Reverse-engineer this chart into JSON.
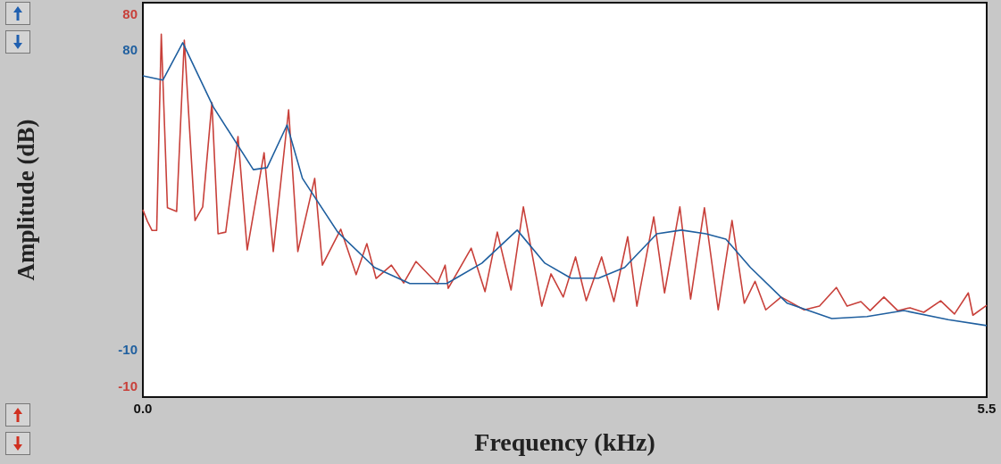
{
  "chart_data": {
    "type": "line",
    "xlabel": "Frequency (kHz)",
    "y2label": "Amplitude (dB)",
    "marker": "none",
    "line_style": "solid",
    "xlim": [
      0,
      5.5
    ],
    "xticks": [
      {
        "value": 0,
        "label": "0.0"
      },
      {
        "value": 5.5,
        "label": "5.5"
      }
    ],
    "ylim": [
      -24.2,
      93.9
    ],
    "yticks": [
      -10,
      80
    ],
    "y2lim": [
      -12.8,
      82.6
    ],
    "y2ticks": [
      -10,
      80
    ],
    "series": [
      {
        "color": "#c8403a",
        "axis": "y2",
        "x": [
          0,
          0.03,
          0.06,
          0.09,
          0.12,
          0.16,
          0.22,
          0.27,
          0.34,
          0.39,
          0.45,
          0.49,
          0.54,
          0.62,
          0.68,
          0.79,
          0.85,
          0.95,
          1.01,
          1.12,
          1.17,
          1.29,
          1.39,
          1.46,
          1.52,
          1.62,
          1.7,
          1.78,
          1.92,
          1.97,
          1.99,
          2.14,
          2.23,
          2.31,
          2.4,
          2.48,
          2.6,
          2.66,
          2.74,
          2.82,
          2.89,
          2.99,
          3.07,
          3.16,
          3.22,
          3.33,
          3.4,
          3.5,
          3.57,
          3.66,
          3.75,
          3.84,
          3.92,
          3.99,
          4.06,
          4.16,
          4.31,
          4.41,
          4.52,
          4.59,
          4.68,
          4.74,
          4.83,
          4.92,
          5,
          5.09,
          5.2,
          5.29,
          5.38,
          5.41,
          5.5
        ],
        "values": [
          32.5,
          29.7,
          27.5,
          27.5,
          75,
          33,
          32.1,
          73.5,
          29.9,
          33.2,
          58.4,
          26.7,
          27.1,
          50.2,
          22.8,
          46.3,
          22.4,
          56.7,
          22.4,
          40.1,
          19.1,
          27.8,
          16.8,
          24.3,
          15.9,
          19.1,
          14.8,
          20,
          14.6,
          19.1,
          13.5,
          23.2,
          12.7,
          27.1,
          13.1,
          33.2,
          9.2,
          17,
          11.4,
          21.1,
          10.5,
          21.1,
          10.3,
          26,
          9.2,
          30.8,
          12.4,
          33.2,
          10.9,
          33,
          8.3,
          29.9,
          9.9,
          15.2,
          8.3,
          11.4,
          8.3,
          9.2,
          13.7,
          9.2,
          10.3,
          8.1,
          11.4,
          8.1,
          8.8,
          7.7,
          10.5,
          7.3,
          12.4,
          7,
          9.4
        ]
      },
      {
        "color": "#1f5f9f",
        "x": [
          0,
          0.13,
          0.26,
          0.46,
          0.72,
          0.81,
          0.94,
          1.04,
          1.27,
          1.51,
          1.74,
          1.98,
          2.21,
          2.44,
          2.62,
          2.79,
          2.97,
          3.14,
          3.35,
          3.51,
          3.67,
          3.8,
          3.96,
          4.2,
          4.49,
          4.72,
          4.96,
          5.25,
          5.5
        ],
        "values": [
          72,
          70.7,
          81.9,
          62.6,
          43.9,
          44.5,
          57.3,
          41.3,
          25.2,
          14.6,
          9.8,
          9.8,
          15.9,
          25.8,
          15.9,
          11.4,
          11.4,
          14.6,
          24.7,
          25.8,
          24.7,
          23.1,
          14.6,
          3.9,
          -0.7,
          -0.1,
          1.7,
          -1,
          -2.8
        ]
      }
    ]
  }
}
